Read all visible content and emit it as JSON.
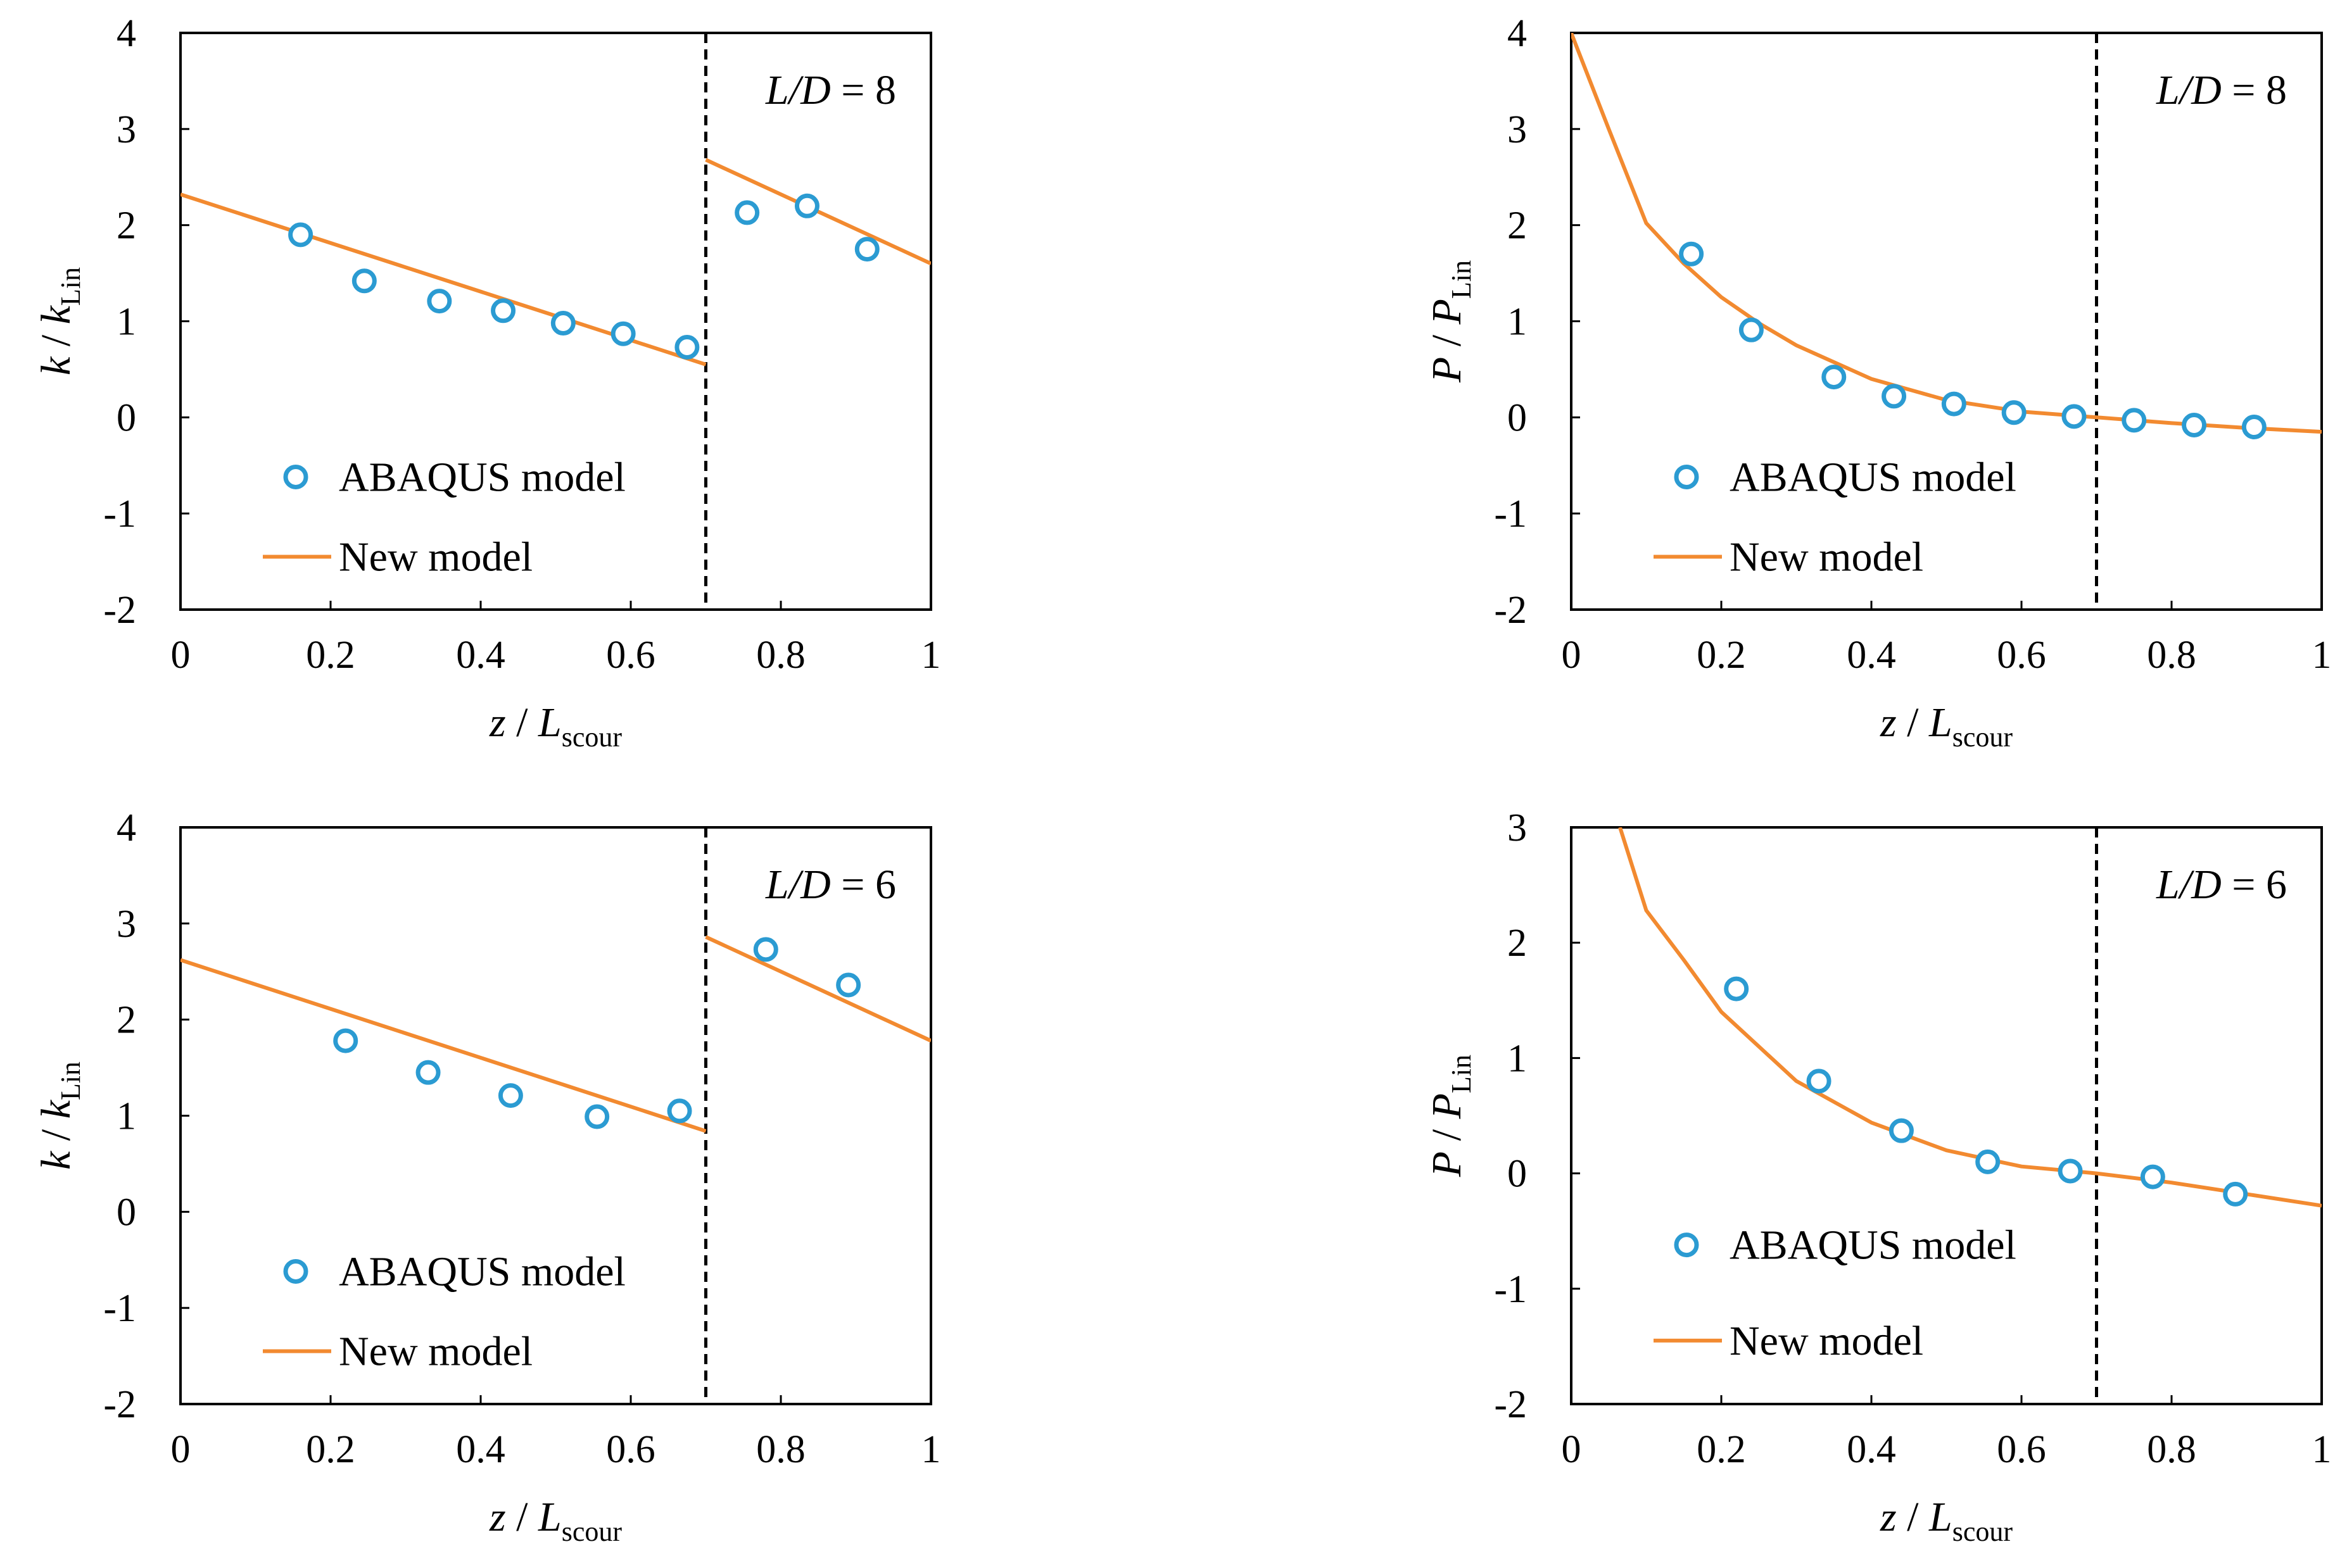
{
  "colors": {
    "abaqus": "#2b9bd2",
    "new_model": "#f28a30",
    "axis": "#000000",
    "background": "#ffffff"
  },
  "chart_data": [
    {
      "type": "scatter",
      "panel": "top-left",
      "annotation": {
        "italic": "L/D",
        "rest": " = 8"
      },
      "xlabel": {
        "main": "z / L",
        "sub": "scour"
      },
      "ylabel": {
        "main": "k / k",
        "sub": "Lin"
      },
      "xlim": [
        0,
        1
      ],
      "ylim": [
        -2,
        4
      ],
      "xticks": [
        "0",
        "0.2",
        "0.4",
        "0.6",
        "0.8",
        "1"
      ],
      "yticks": [
        "-2",
        "-1",
        "0",
        "1",
        "2",
        "3",
        "4"
      ],
      "divider_x": 0.7,
      "legend": {
        "position": "lower-left",
        "entries": [
          "ABAQUS model",
          "New model"
        ]
      },
      "series": [
        {
          "name": "ABAQUS model",
          "kind": "markers",
          "x": [
            0.16,
            0.245,
            0.345,
            0.43,
            0.51,
            0.59,
            0.675,
            0.755,
            0.835,
            0.915
          ],
          "y": [
            1.9,
            1.42,
            1.21,
            1.11,
            0.98,
            0.87,
            0.73,
            2.13,
            2.2,
            1.75
          ]
        },
        {
          "name": "New model",
          "kind": "line",
          "segments": [
            {
              "x": [
                0,
                0.7
              ],
              "y": [
                2.32,
                0.55
              ]
            },
            {
              "x": [
                0.7,
                1.0
              ],
              "y": [
                2.68,
                1.6
              ]
            }
          ]
        }
      ]
    },
    {
      "type": "scatter",
      "panel": "top-right",
      "annotation": {
        "italic": "L/D",
        "rest": " = 8"
      },
      "xlabel": {
        "main": "z / L",
        "sub": "scour"
      },
      "ylabel": {
        "main": "P / P",
        "sub": "Lin"
      },
      "xlim": [
        0,
        1
      ],
      "ylim": [
        -2,
        4
      ],
      "xticks": [
        "0",
        "0.2",
        "0.4",
        "0.6",
        "0.8",
        "1"
      ],
      "yticks": [
        "-2",
        "-1",
        "0",
        "1",
        "2",
        "3",
        "4"
      ],
      "divider_x": 0.7,
      "legend": {
        "position": "lower-left",
        "entries": [
          "ABAQUS model",
          "New model"
        ]
      },
      "series": [
        {
          "name": "ABAQUS model",
          "kind": "markers",
          "x": [
            0.16,
            0.24,
            0.35,
            0.43,
            0.51,
            0.59,
            0.67,
            0.75,
            0.83,
            0.91
          ],
          "y": [
            1.7,
            0.91,
            0.42,
            0.22,
            0.14,
            0.05,
            0.01,
            -0.03,
            -0.08,
            -0.1
          ]
        },
        {
          "name": "New model",
          "kind": "line",
          "segments": [
            {
              "x": [
                0.0,
                0.05,
                0.1,
                0.15,
                0.2,
                0.25,
                0.3,
                0.4,
                0.5,
                0.6,
                0.7,
                0.8,
                0.9,
                1.0
              ],
              "y": [
                4.0,
                3.0,
                2.02,
                1.6,
                1.25,
                0.98,
                0.75,
                0.4,
                0.18,
                0.06,
                0.0,
                -0.06,
                -0.11,
                -0.15
              ]
            }
          ]
        }
      ]
    },
    {
      "type": "scatter",
      "panel": "bottom-left",
      "annotation": {
        "italic": "L/D",
        "rest": " = 6"
      },
      "xlabel": {
        "main": "z / L",
        "sub": "scour"
      },
      "ylabel": {
        "main": "k / k",
        "sub": "Lin"
      },
      "xlim": [
        0,
        1
      ],
      "ylim": [
        -2,
        4
      ],
      "xticks": [
        "0",
        "0.2",
        "0.4",
        "0.6",
        "0.8",
        "1"
      ],
      "yticks": [
        "-2",
        "-1",
        "0",
        "1",
        "2",
        "3",
        "4"
      ],
      "divider_x": 0.7,
      "legend": {
        "position": "lower-left",
        "entries": [
          "ABAQUS model",
          "New model"
        ]
      },
      "series": [
        {
          "name": "ABAQUS model",
          "kind": "markers",
          "x": [
            0.22,
            0.33,
            0.44,
            0.555,
            0.665,
            0.78,
            0.89
          ],
          "y": [
            1.78,
            1.45,
            1.21,
            0.99,
            1.05,
            2.73,
            2.36
          ]
        },
        {
          "name": "New model",
          "kind": "line",
          "segments": [
            {
              "x": [
                0,
                0.7
              ],
              "y": [
                2.62,
                0.84
              ]
            },
            {
              "x": [
                0.7,
                1.0
              ],
              "y": [
                2.86,
                1.78
              ]
            }
          ]
        }
      ]
    },
    {
      "type": "scatter",
      "panel": "bottom-right",
      "annotation": {
        "italic": "L/D",
        "rest": " = 6"
      },
      "xlabel": {
        "main": "z / L",
        "sub": "scour"
      },
      "ylabel": {
        "main": "P / P",
        "sub": "Lin"
      },
      "xlim": [
        0,
        1
      ],
      "ylim": [
        -2,
        3
      ],
      "xticks": [
        "0",
        "0.2",
        "0.4",
        "0.6",
        "0.8",
        "1"
      ],
      "yticks": [
        "-2",
        "-1",
        "0",
        "1",
        "2",
        "3"
      ],
      "divider_x": 0.7,
      "legend": {
        "position": "lower-left",
        "entries": [
          "ABAQUS model",
          "New model"
        ]
      },
      "series": [
        {
          "name": "ABAQUS model",
          "kind": "markers",
          "x": [
            0.22,
            0.33,
            0.44,
            0.555,
            0.665,
            0.775,
            0.885
          ],
          "y": [
            1.6,
            0.8,
            0.37,
            0.1,
            0.02,
            -0.03,
            -0.18
          ]
        },
        {
          "name": "New model",
          "kind": "line",
          "segments": [
            {
              "x": [
                0.065,
                0.1,
                0.15,
                0.2,
                0.25,
                0.3,
                0.4,
                0.5,
                0.6,
                0.7,
                0.8,
                0.9,
                1.0
              ],
              "y": [
                3.0,
                2.28,
                1.85,
                1.4,
                1.1,
                0.8,
                0.44,
                0.2,
                0.06,
                0.0,
                -0.08,
                -0.18,
                -0.28
              ]
            }
          ]
        }
      ]
    }
  ]
}
